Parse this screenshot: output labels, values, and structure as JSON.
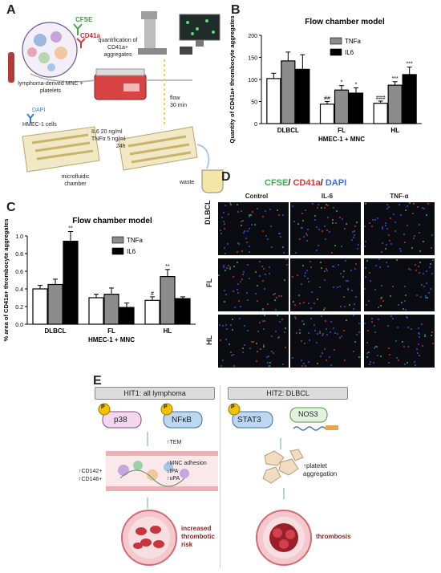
{
  "panels": {
    "A": {
      "letter": "A",
      "labels": {
        "cfse": "CFSE",
        "cd41a": "CD41a",
        "source": "lymphoma-derived MNC + platelets",
        "quant": "quantification of CD41a+ aggregates",
        "dapi": "DAPI",
        "hmec": "HMEC-1 cells",
        "chamber": "microfluidic chamber",
        "cyto1": "IL6 20 ng/ml",
        "cyto2": "TNFα 5 ng/ml",
        "cyto3": "24h",
        "flow1": "flow",
        "flow2": "30 min",
        "waste": "waste"
      }
    },
    "B": {
      "letter": "B",
      "xlabel": "HMEC-1 + MNC"
    },
    "C": {
      "letter": "C",
      "xlabel": "HMEC-1 + MNC"
    },
    "D": {
      "letter": "D",
      "title_cfse": "CFSE",
      "title_cd41a": "CD41a",
      "title_dapi": "DAPI",
      "columns": [
        "Control",
        "IL-6",
        "TNF-α"
      ],
      "rows": [
        "DLBCL",
        "FL",
        "HL"
      ]
    },
    "E": {
      "letter": "E",
      "hit1": {
        "title": "HIT1: all lymphoma",
        "p38": "p38",
        "nfkb": "NFκB",
        "p": "P",
        "tem": "↑TEM",
        "mnc": "↑MNC adhesion",
        "tpa": "↓tPA",
        "upa": "↑uPA",
        "cd142": "↑CD142+",
        "cd146": "↑CD146+",
        "outcome1": "increased",
        "outcome2": "thrombotic",
        "outcome3": "risk"
      },
      "hit2": {
        "title": "HIT2: DLBCL",
        "stat3": "STAT3",
        "nos3": "NOS3",
        "p": "P",
        "plt1": "↑platelet",
        "plt2": "aggregation",
        "outcome": "thrombosis"
      }
    }
  },
  "chart_data": [
    {
      "id": "B",
      "type": "bar",
      "title": "Flow chamber model",
      "ylabel": "Quantity of CD41a+ thrombocyte aggregates",
      "xlabel": "HMEC-1 + MNC",
      "ylim": [
        0,
        200
      ],
      "yticks": [
        0,
        50,
        100,
        150,
        200
      ],
      "categories": [
        "DLBCL",
        "FL",
        "HL"
      ],
      "legend": [
        "TNFa",
        "IL6"
      ],
      "series": [
        {
          "name": "",
          "color": "#ffffff",
          "values": [
            102,
            44,
            46
          ],
          "errors": [
            12,
            6,
            5
          ],
          "annotations": [
            "",
            "##",
            "###"
          ]
        },
        {
          "name": "TNFa",
          "color": "#8c8c8c",
          "values": [
            142,
            76,
            87
          ],
          "errors": [
            20,
            10,
            8
          ],
          "annotations": [
            "",
            "*",
            "***"
          ]
        },
        {
          "name": "IL6",
          "color": "#000000",
          "values": [
            123,
            69,
            111
          ],
          "errors": [
            33,
            12,
            17
          ],
          "annotations": [
            "",
            "*",
            "***"
          ]
        }
      ]
    },
    {
      "id": "C",
      "type": "bar",
      "title": "Flow chamber model",
      "ylabel": "% area of CD41a+ thrombocyte aggregates",
      "xlabel": "HMEC-1 + MNC",
      "ylim": [
        0,
        1.0
      ],
      "yticks": [
        "0.0",
        "0.2",
        "0.4",
        "0.6",
        "0.8",
        "1.0"
      ],
      "categories": [
        "DLBCL",
        "FL",
        "HL"
      ],
      "legend": [
        "TNFa",
        "IL6"
      ],
      "series": [
        {
          "name": "",
          "color": "#ffffff",
          "values": [
            0.4,
            0.3,
            0.27
          ],
          "errors": [
            0.04,
            0.04,
            0.04
          ],
          "annotations": [
            "",
            "",
            "#"
          ]
        },
        {
          "name": "TNFa",
          "color": "#8c8c8c",
          "values": [
            0.45,
            0.34,
            0.54
          ],
          "errors": [
            0.06,
            0.07,
            0.08
          ],
          "annotations": [
            "",
            "",
            "**"
          ]
        },
        {
          "name": "IL6",
          "color": "#000000",
          "values": [
            0.94,
            0.19,
            0.29
          ],
          "errors": [
            0.11,
            0.05,
            0.02
          ],
          "annotations": [
            "**",
            "",
            ""
          ]
        }
      ]
    }
  ]
}
